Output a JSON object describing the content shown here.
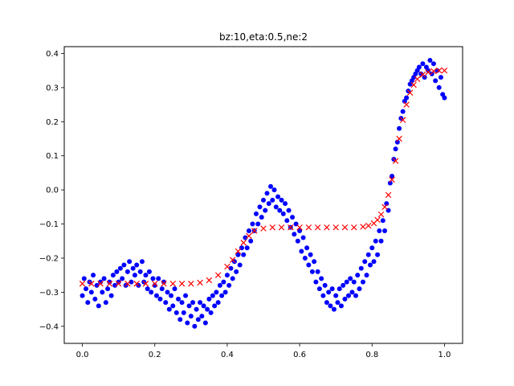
{
  "chart_data": {
    "type": "scatter",
    "title": "bz:10,eta:0.5,ne:2",
    "xlabel": "",
    "ylabel": "",
    "xlim": [
      -0.05,
      1.05
    ],
    "ylim": [
      -0.45,
      0.42
    ],
    "xticks": [
      0.0,
      0.2,
      0.4,
      0.6,
      0.8,
      1.0
    ],
    "xtick_labels": [
      "0.0",
      "0.2",
      "0.4",
      "0.6",
      "0.8",
      "1.0"
    ],
    "yticks": [
      -0.4,
      -0.3,
      -0.2,
      -0.1,
      0.0,
      0.1,
      0.2,
      0.3,
      0.4
    ],
    "ytick_labels": [
      "−0.4",
      "−0.3",
      "−0.2",
      "−0.1",
      "0.0",
      "0.1",
      "0.2",
      "0.3",
      "0.4"
    ],
    "grid": false,
    "legend": "none",
    "series": [
      {
        "marker": "dot",
        "color": "#0000ff",
        "points": [
          [
            0.0,
            -0.31
          ],
          [
            0.005,
            -0.26
          ],
          [
            0.01,
            -0.29
          ],
          [
            0.015,
            -0.33
          ],
          [
            0.02,
            -0.27
          ],
          [
            0.025,
            -0.3
          ],
          [
            0.03,
            -0.25
          ],
          [
            0.035,
            -0.32
          ],
          [
            0.04,
            -0.28
          ],
          [
            0.045,
            -0.34
          ],
          [
            0.05,
            -0.27
          ],
          [
            0.055,
            -0.3
          ],
          [
            0.06,
            -0.26
          ],
          [
            0.065,
            -0.33
          ],
          [
            0.07,
            -0.29
          ],
          [
            0.075,
            -0.27
          ],
          [
            0.08,
            -0.31
          ],
          [
            0.085,
            -0.25
          ],
          [
            0.09,
            -0.28
          ],
          [
            0.095,
            -0.24
          ],
          [
            0.1,
            -0.27
          ],
          [
            0.105,
            -0.23
          ],
          [
            0.11,
            -0.26
          ],
          [
            0.115,
            -0.22
          ],
          [
            0.12,
            -0.28
          ],
          [
            0.125,
            -0.24
          ],
          [
            0.13,
            -0.21
          ],
          [
            0.135,
            -0.27
          ],
          [
            0.14,
            -0.23
          ],
          [
            0.145,
            -0.25
          ],
          [
            0.15,
            -0.22
          ],
          [
            0.155,
            -0.28
          ],
          [
            0.16,
            -0.24
          ],
          [
            0.165,
            -0.21
          ],
          [
            0.17,
            -0.27
          ],
          [
            0.175,
            -0.25
          ],
          [
            0.18,
            -0.29
          ],
          [
            0.185,
            -0.24
          ],
          [
            0.19,
            -0.3
          ],
          [
            0.195,
            -0.26
          ],
          [
            0.2,
            -0.28
          ],
          [
            0.205,
            -0.31
          ],
          [
            0.21,
            -0.26
          ],
          [
            0.215,
            -0.32
          ],
          [
            0.22,
            -0.29
          ],
          [
            0.225,
            -0.27
          ],
          [
            0.23,
            -0.33
          ],
          [
            0.235,
            -0.3
          ],
          [
            0.24,
            -0.35
          ],
          [
            0.245,
            -0.31
          ],
          [
            0.25,
            -0.34
          ],
          [
            0.255,
            -0.29
          ],
          [
            0.26,
            -0.36
          ],
          [
            0.265,
            -0.32
          ],
          [
            0.27,
            -0.38
          ],
          [
            0.275,
            -0.33
          ],
          [
            0.28,
            -0.36
          ],
          [
            0.285,
            -0.31
          ],
          [
            0.29,
            -0.39
          ],
          [
            0.295,
            -0.34
          ],
          [
            0.3,
            -0.37
          ],
          [
            0.305,
            -0.33
          ],
          [
            0.31,
            -0.4
          ],
          [
            0.315,
            -0.35
          ],
          [
            0.32,
            -0.38
          ],
          [
            0.325,
            -0.33
          ],
          [
            0.33,
            -0.37
          ],
          [
            0.335,
            -0.34
          ],
          [
            0.34,
            -0.39
          ],
          [
            0.345,
            -0.35
          ],
          [
            0.35,
            -0.32
          ],
          [
            0.355,
            -0.36
          ],
          [
            0.36,
            -0.31
          ],
          [
            0.365,
            -0.34
          ],
          [
            0.37,
            -0.3
          ],
          [
            0.375,
            -0.33
          ],
          [
            0.38,
            -0.28
          ],
          [
            0.385,
            -0.31
          ],
          [
            0.39,
            -0.27
          ],
          [
            0.395,
            -0.3
          ],
          [
            0.4,
            -0.25
          ],
          [
            0.405,
            -0.28
          ],
          [
            0.41,
            -0.23
          ],
          [
            0.415,
            -0.26
          ],
          [
            0.42,
            -0.21
          ],
          [
            0.425,
            -0.24
          ],
          [
            0.43,
            -0.19
          ],
          [
            0.435,
            -0.22
          ],
          [
            0.44,
            -0.17
          ],
          [
            0.445,
            -0.19
          ],
          [
            0.45,
            -0.14
          ],
          [
            0.455,
            -0.17
          ],
          [
            0.46,
            -0.12
          ],
          [
            0.465,
            -0.15
          ],
          [
            0.47,
            -0.1
          ],
          [
            0.475,
            -0.12
          ],
          [
            0.48,
            -0.07
          ],
          [
            0.485,
            -0.1
          ],
          [
            0.49,
            -0.05
          ],
          [
            0.495,
            -0.08
          ],
          [
            0.5,
            -0.03
          ],
          [
            0.505,
            -0.06
          ],
          [
            0.51,
            -0.01
          ],
          [
            0.515,
            -0.04
          ],
          [
            0.52,
            0.01
          ],
          [
            0.525,
            -0.03
          ],
          [
            0.53,
            0.0
          ],
          [
            0.535,
            -0.05
          ],
          [
            0.54,
            -0.02
          ],
          [
            0.545,
            -0.06
          ],
          [
            0.55,
            -0.03
          ],
          [
            0.555,
            -0.07
          ],
          [
            0.56,
            -0.04
          ],
          [
            0.565,
            -0.09
          ],
          [
            0.57,
            -0.06
          ],
          [
            0.575,
            -0.11
          ],
          [
            0.58,
            -0.08
          ],
          [
            0.585,
            -0.13
          ],
          [
            0.59,
            -0.1
          ],
          [
            0.595,
            -0.15
          ],
          [
            0.6,
            -0.12
          ],
          [
            0.605,
            -0.18
          ],
          [
            0.61,
            -0.14
          ],
          [
            0.615,
            -0.2
          ],
          [
            0.62,
            -0.17
          ],
          [
            0.625,
            -0.22
          ],
          [
            0.63,
            -0.19
          ],
          [
            0.635,
            -0.24
          ],
          [
            0.64,
            -0.21
          ],
          [
            0.645,
            -0.27
          ],
          [
            0.65,
            -0.24
          ],
          [
            0.655,
            -0.29
          ],
          [
            0.66,
            -0.26
          ],
          [
            0.665,
            -0.31
          ],
          [
            0.67,
            -0.28
          ],
          [
            0.675,
            -0.33
          ],
          [
            0.68,
            -0.3
          ],
          [
            0.685,
            -0.34
          ],
          [
            0.69,
            -0.29
          ],
          [
            0.695,
            -0.35
          ],
          [
            0.7,
            -0.31
          ],
          [
            0.705,
            -0.33
          ],
          [
            0.71,
            -0.29
          ],
          [
            0.715,
            -0.34
          ],
          [
            0.72,
            -0.28
          ],
          [
            0.725,
            -0.32
          ],
          [
            0.73,
            -0.27
          ],
          [
            0.735,
            -0.31
          ],
          [
            0.74,
            -0.26
          ],
          [
            0.745,
            -0.3
          ],
          [
            0.75,
            -0.27
          ],
          [
            0.755,
            -0.31
          ],
          [
            0.76,
            -0.25
          ],
          [
            0.765,
            -0.29
          ],
          [
            0.77,
            -0.23
          ],
          [
            0.775,
            -0.27
          ],
          [
            0.78,
            -0.21
          ],
          [
            0.785,
            -0.25
          ],
          [
            0.79,
            -0.19
          ],
          [
            0.795,
            -0.22
          ],
          [
            0.8,
            -0.17
          ],
          [
            0.805,
            -0.21
          ],
          [
            0.81,
            -0.15
          ],
          [
            0.815,
            -0.19
          ],
          [
            0.82,
            -0.12
          ],
          [
            0.825,
            -0.15
          ],
          [
            0.83,
            -0.09
          ],
          [
            0.835,
            -0.12
          ],
          [
            0.84,
            -0.04
          ],
          [
            0.845,
            -0.06
          ],
          [
            0.85,
            0.02
          ],
          [
            0.855,
            0.04
          ],
          [
            0.86,
            0.09
          ],
          [
            0.865,
            0.12
          ],
          [
            0.87,
            0.14
          ],
          [
            0.875,
            0.18
          ],
          [
            0.88,
            0.21
          ],
          [
            0.885,
            0.23
          ],
          [
            0.89,
            0.26
          ],
          [
            0.895,
            0.27
          ],
          [
            0.9,
            0.29
          ],
          [
            0.905,
            0.31
          ],
          [
            0.91,
            0.32
          ],
          [
            0.915,
            0.33
          ],
          [
            0.92,
            0.34
          ],
          [
            0.925,
            0.35
          ],
          [
            0.93,
            0.36
          ],
          [
            0.935,
            0.34
          ],
          [
            0.94,
            0.37
          ],
          [
            0.945,
            0.33
          ],
          [
            0.95,
            0.36
          ],
          [
            0.955,
            0.35
          ],
          [
            0.96,
            0.38
          ],
          [
            0.965,
            0.34
          ],
          [
            0.97,
            0.37
          ],
          [
            0.975,
            0.32
          ],
          [
            0.98,
            0.35
          ],
          [
            0.985,
            0.3
          ],
          [
            0.99,
            0.33
          ],
          [
            0.995,
            0.28
          ],
          [
            1.0,
            0.27
          ]
        ]
      },
      {
        "marker": "x",
        "color": "#ff0000",
        "points": [
          [
            0.0,
            -0.275
          ],
          [
            0.025,
            -0.275
          ],
          [
            0.05,
            -0.275
          ],
          [
            0.075,
            -0.275
          ],
          [
            0.1,
            -0.275
          ],
          [
            0.125,
            -0.275
          ],
          [
            0.15,
            -0.275
          ],
          [
            0.175,
            -0.275
          ],
          [
            0.2,
            -0.275
          ],
          [
            0.225,
            -0.275
          ],
          [
            0.25,
            -0.275
          ],
          [
            0.275,
            -0.275
          ],
          [
            0.3,
            -0.275
          ],
          [
            0.325,
            -0.272
          ],
          [
            0.35,
            -0.265
          ],
          [
            0.375,
            -0.25
          ],
          [
            0.4,
            -0.225
          ],
          [
            0.415,
            -0.205
          ],
          [
            0.43,
            -0.18
          ],
          [
            0.445,
            -0.155
          ],
          [
            0.46,
            -0.135
          ],
          [
            0.475,
            -0.12
          ],
          [
            0.5,
            -0.113
          ],
          [
            0.525,
            -0.11
          ],
          [
            0.55,
            -0.11
          ],
          [
            0.575,
            -0.11
          ],
          [
            0.6,
            -0.11
          ],
          [
            0.625,
            -0.11
          ],
          [
            0.65,
            -0.11
          ],
          [
            0.675,
            -0.11
          ],
          [
            0.7,
            -0.11
          ],
          [
            0.725,
            -0.11
          ],
          [
            0.75,
            -0.11
          ],
          [
            0.775,
            -0.108
          ],
          [
            0.79,
            -0.105
          ],
          [
            0.805,
            -0.098
          ],
          [
            0.815,
            -0.088
          ],
          [
            0.825,
            -0.072
          ],
          [
            0.835,
            -0.05
          ],
          [
            0.845,
            -0.015
          ],
          [
            0.855,
            0.03
          ],
          [
            0.865,
            0.085
          ],
          [
            0.875,
            0.15
          ],
          [
            0.885,
            0.205
          ],
          [
            0.895,
            0.25
          ],
          [
            0.905,
            0.285
          ],
          [
            0.915,
            0.308
          ],
          [
            0.925,
            0.325
          ],
          [
            0.94,
            0.338
          ],
          [
            0.955,
            0.345
          ],
          [
            0.97,
            0.348
          ],
          [
            0.985,
            0.35
          ],
          [
            1.0,
            0.35
          ]
        ]
      }
    ]
  }
}
